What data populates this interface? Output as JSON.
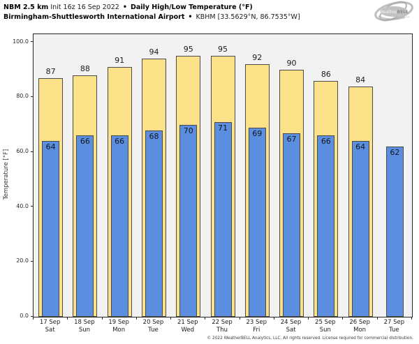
{
  "header": {
    "title_bold1": "NBM 2.5 km",
    "title_regular1": "Init 16z 16 Sep 2022",
    "separator": "•",
    "title_bold2": "Daily High/Low Temperature (°F)",
    "subtitle_bold": "Birmingham-Shuttlesworth International Airport",
    "subtitle_regular": "KBHM [33.5629°N, 86.7535°W]"
  },
  "logo": {
    "icon": "weatherbell-swirl-logo",
    "text_weather": "Weather",
    "text_bell": "BELL",
    "text_sub": "Analytics LLC"
  },
  "chart_data": {
    "type": "bar",
    "title": "NBM 2.5 km Init 16z 16 Sep 2022 • Daily High/Low Temperature (°F)",
    "subtitle": "Birmingham-Shuttlesworth International Airport • KBHM [33.5629°N, 86.7535°W]",
    "ylabel": "Temperature [°F]",
    "xlabel": "",
    "ylim": [
      0,
      103
    ],
    "yticks": [
      0,
      20,
      40,
      60,
      80,
      100
    ],
    "ytick_labels": [
      "0.0",
      "20.0",
      "40.0",
      "60.0",
      "80.0",
      "100.0"
    ],
    "grid": false,
    "legend_position": "none",
    "plot_background": "#f2f2f2",
    "categories": [
      {
        "date": "17 Sep",
        "day": "Sat"
      },
      {
        "date": "18 Sep",
        "day": "Sun"
      },
      {
        "date": "19 Sep",
        "day": "Mon"
      },
      {
        "date": "20 Sep",
        "day": "Tue"
      },
      {
        "date": "21 Sep",
        "day": "Wed"
      },
      {
        "date": "22 Sep",
        "day": "Thu"
      },
      {
        "date": "23 Sep",
        "day": "Fri"
      },
      {
        "date": "24 Sep",
        "day": "Sat"
      },
      {
        "date": "25 Sep",
        "day": "Sun"
      },
      {
        "date": "26 Sep",
        "day": "Mon"
      },
      {
        "date": "27 Sep",
        "day": "Tue"
      }
    ],
    "series": [
      {
        "name": "Daily High",
        "color": "#fbe288",
        "values": [
          87,
          88,
          91,
          94,
          95,
          95,
          92,
          90,
          86,
          84,
          null
        ]
      },
      {
        "name": "Daily Low",
        "color": "#5c8ee0",
        "values": [
          64,
          66,
          66,
          68,
          70,
          71,
          69,
          67,
          66,
          64,
          62
        ]
      }
    ]
  },
  "footer": {
    "copyright": "© 2022 WeatherBELL Analytics, LLC. All rights reserved. License required for commercial distribution."
  }
}
